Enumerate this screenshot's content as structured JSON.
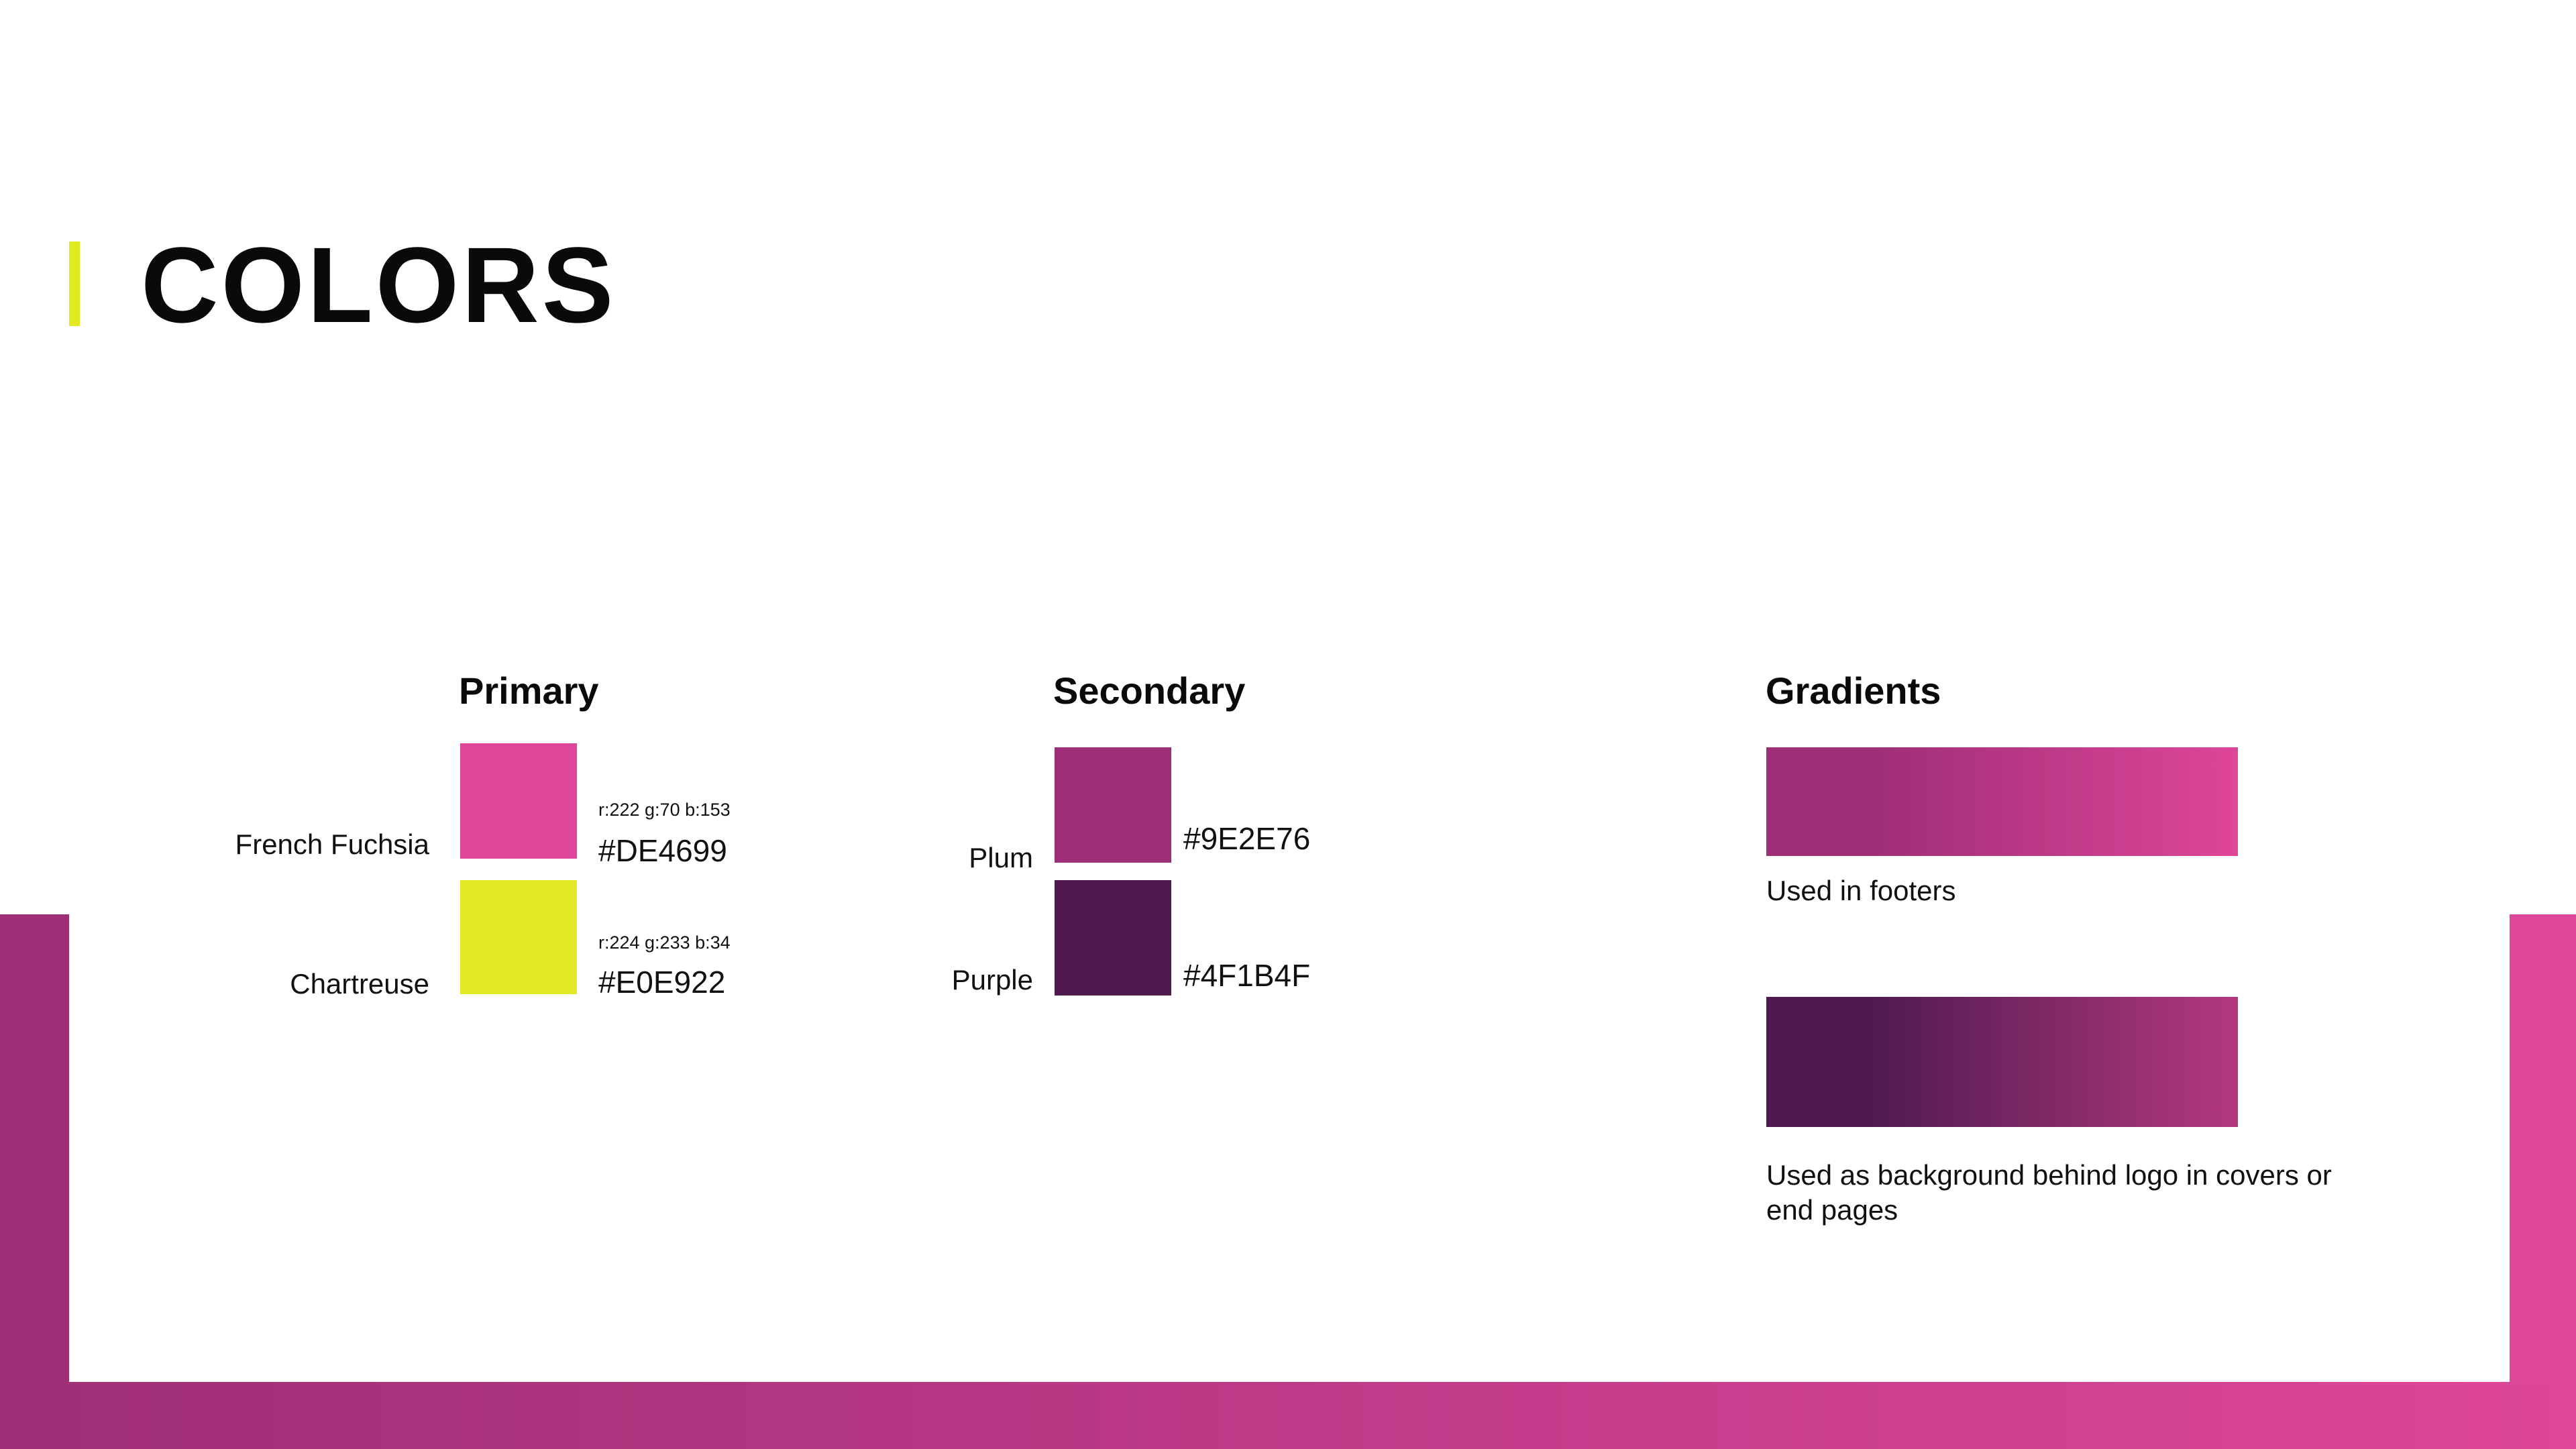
{
  "page": {
    "title": "COLORS"
  },
  "primary": {
    "heading": "Primary",
    "colors": [
      {
        "name": "French Fuchsia",
        "rgb": "r:222 g:70 b:153",
        "hex": "#DE4699",
        "swatch": "#de4699"
      },
      {
        "name": "Chartreuse",
        "rgb": "r:224 g:233 b:34",
        "hex": "#E0E922",
        "swatch": "#e0e922"
      }
    ]
  },
  "secondary": {
    "heading": "Secondary",
    "colors": [
      {
        "name": "Plum",
        "hex": "#9E2E76",
        "swatch": "#9e2e76"
      },
      {
        "name": "Purple",
        "hex": "#4F1B4F",
        "swatch": "#4f1b4f"
      }
    ]
  },
  "gradients": {
    "heading": "Gradients",
    "items": [
      {
        "caption": "Used in footers",
        "from": "#9e2e76",
        "to": "#de4699"
      },
      {
        "caption": "Used as background behind logo in covers or end pages",
        "from": "#4f1b4f",
        "to": "#b3387f"
      }
    ]
  },
  "theme": {
    "accent": "#e0e922",
    "frame_start": "#9e2e76",
    "frame_end": "#de4699"
  }
}
